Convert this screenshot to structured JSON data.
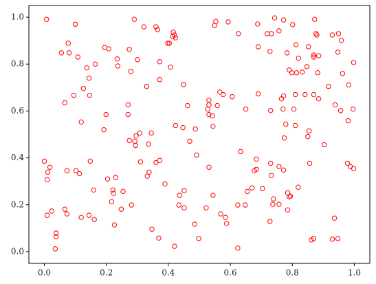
{
  "chart_data": {
    "type": "scatter",
    "color": "#ff0000",
    "xlim": [
      -0.05,
      1.05
    ],
    "ylim": [
      -0.05,
      1.05
    ],
    "xticks": [
      {
        "value": 0,
        "label": "0.0"
      },
      {
        "value": 0.2,
        "label": "0.2"
      },
      {
        "value": 0.4,
        "label": "0.4"
      },
      {
        "value": 0.6,
        "label": "0.6"
      },
      {
        "value": 0.8,
        "label": "0.8"
      },
      {
        "value": 1,
        "label": "1.0"
      }
    ],
    "yticks": [
      {
        "value": 0,
        "label": "0.0"
      },
      {
        "value": 0.2,
        "label": "0.2"
      },
      {
        "value": 0.4,
        "label": "0.4"
      },
      {
        "value": 0.6,
        "label": "0.6"
      },
      {
        "value": 0.8,
        "label": "0.8"
      },
      {
        "value": 1,
        "label": "1.0"
      }
    ],
    "x": [
      0.007,
      0.1,
      0.077,
      0.055,
      0.08,
      0.108,
      0.137,
      0.164,
      0.144,
      0.095,
      0.126,
      0.146,
      0.066,
      0.119,
      0.195,
      0.208,
      0.235,
      0.237,
      0.29,
      0.274,
      0.279,
      0.3,
      0.321,
      0.36,
      0.365,
      0.372,
      0.407,
      0.372,
      0.33,
      0.398,
      0.403,
      0.416,
      0.42,
      0.423,
      0.414,
      0.449,
      0.199,
      0.192,
      0.27,
      0.27,
      0.274,
      0.292,
      0.296,
      0.308,
      0.345,
      0.336,
      0.294,
      0.31,
      0.36,
      0.372,
      0.332,
      0.338,
      0.389,
      0.148,
      0.073,
      0.102,
      0.113,
      0.018,
      0.011,
      0.009,
      0.0,
      0.009,
      0.024,
      0.066,
      0.073,
      0.038,
      0.038,
      0.035,
      0.119,
      0.144,
      0.161,
      0.159,
      0.204,
      0.23,
      0.221,
      0.223,
      0.217,
      0.248,
      0.254,
      0.281,
      0.226,
      0.347,
      0.369,
      0.42,
      0.436,
      0.434,
      0.451,
      0.451,
      0.485,
      0.498,
      0.531,
      0.522,
      0.544,
      0.569,
      0.584,
      0.588,
      0.624,
      0.624,
      0.648,
      0.655,
      0.67,
      0.633,
      0.491,
      0.487,
      0.469,
      0.447,
      0.423,
      0.462,
      0.531,
      0.531,
      0.527,
      0.531,
      0.544,
      0.542,
      0.558,
      0.566,
      0.577,
      0.606,
      0.65,
      0.549,
      0.553,
      0.593,
      0.626,
      0.688,
      0.69,
      0.719,
      0.732,
      0.743,
      0.757,
      0.772,
      0.801,
      0.812,
      0.783,
      0.82,
      0.728,
      0.79,
      0.799,
      0.814,
      0.69,
      0.765,
      0.73,
      0.77,
      0.772,
      0.805,
      0.81,
      0.81,
      0.779,
      0.774,
      0.85,
      0.854,
      0.841,
      0.869,
      0.885,
      0.872,
      0.879,
      0.876,
      0.852,
      0.869,
      0.869,
      0.885,
      0.847,
      0.832,
      0.882,
      0.917,
      0.929,
      0.949,
      0.958,
      0.947,
      0.962,
      0.998,
      0.982,
      0.938,
      0.956,
      0.996,
      0.98,
      0.903,
      0.856,
      0.978,
      0.987,
      0.998,
      0.819,
      0.785,
      0.79,
      0.794,
      0.785,
      0.757,
      0.737,
      0.739,
      0.73,
      0.757,
      0.772,
      0.704,
      0.677,
      0.684,
      0.684,
      0.732,
      0.728,
      0.936,
      0.929,
      0.947,
      0.869,
      0.861
    ],
    "values": [
      0.991,
      0.97,
      0.889,
      0.848,
      0.848,
      0.83,
      0.784,
      0.8,
      0.74,
      0.667,
      0.696,
      0.667,
      0.635,
      0.553,
      0.871,
      0.865,
      0.822,
      0.792,
      0.991,
      0.863,
      0.769,
      0.819,
      0.959,
      0.959,
      0.947,
      0.81,
      0.787,
      0.734,
      0.705,
      0.889,
      0.889,
      0.936,
      0.924,
      0.912,
      0.918,
      0.713,
      0.585,
      0.52,
      0.626,
      0.585,
      0.474,
      0.471,
      0.494,
      0.506,
      0.506,
      0.459,
      0.453,
      0.383,
      0.38,
      0.389,
      0.322,
      0.339,
      0.289,
      0.386,
      0.345,
      0.345,
      0.333,
      0.36,
      0.339,
      0.307,
      0.386,
      0.155,
      0.173,
      0.181,
      0.161,
      0.079,
      0.064,
      0.012,
      0.146,
      0.155,
      0.137,
      0.263,
      0.31,
      0.316,
      0.263,
      0.249,
      0.213,
      0.181,
      0.257,
      0.199,
      0.114,
      0.096,
      0.058,
      0.023,
      0.24,
      0.199,
      0.187,
      0.26,
      0.117,
      0.056,
      0.36,
      0.187,
      0.24,
      0.161,
      0.146,
      0.12,
      0.015,
      0.199,
      0.199,
      0.257,
      0.272,
      0.427,
      0.412,
      0.523,
      0.471,
      0.529,
      0.538,
      0.623,
      0.646,
      0.626,
      0.608,
      0.585,
      0.535,
      0.579,
      0.623,
      0.681,
      0.67,
      0.661,
      0.608,
      0.965,
      0.982,
      0.98,
      0.93,
      0.971,
      0.874,
      0.93,
      0.93,
      0.997,
      0.942,
      0.988,
      0.968,
      0.883,
      0.848,
      0.825,
      0.854,
      0.775,
      0.763,
      0.763,
      0.673,
      0.652,
      0.602,
      0.608,
      0.664,
      0.608,
      0.67,
      0.538,
      0.544,
      0.485,
      0.491,
      0.515,
      0.67,
      0.67,
      0.652,
      0.991,
      0.924,
      0.93,
      0.874,
      0.839,
      0.83,
      0.836,
      0.789,
      0.766,
      0.763,
      0.705,
      0.924,
      0.93,
      0.901,
      0.851,
      0.76,
      0.807,
      0.711,
      0.626,
      0.602,
      0.608,
      0.558,
      0.456,
      0.377,
      0.377,
      0.363,
      0.354,
      0.275,
      0.251,
      0.234,
      0.237,
      0.178,
      0.202,
      0.202,
      0.225,
      0.377,
      0.363,
      0.348,
      0.269,
      0.345,
      0.351,
      0.395,
      0.325,
      0.129,
      0.143,
      0.053,
      0.056,
      0.056,
      0.05
    ]
  }
}
